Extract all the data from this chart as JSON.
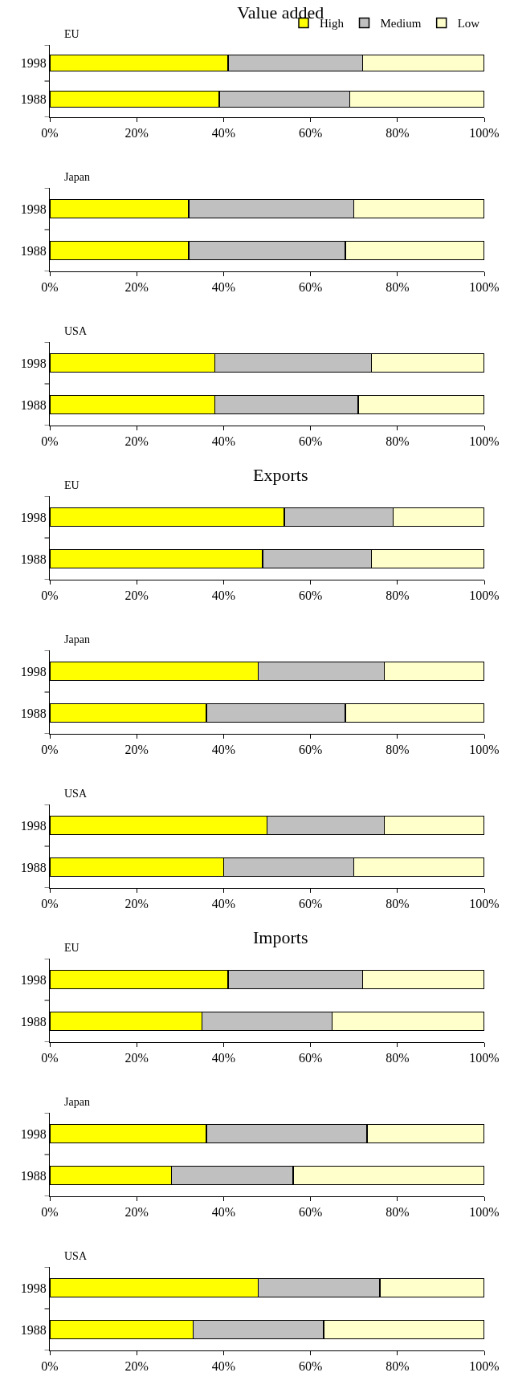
{
  "chart_data": [
    {
      "type": "bar",
      "orientation": "horizontal",
      "stacked": true,
      "title": "Value added",
      "subtitle": "EU",
      "legend": "top right",
      "categories": [
        "1998",
        "1988"
      ],
      "xlim": [
        0,
        100
      ],
      "xticks": [
        {
          "value": 0,
          "label": "0%"
        },
        {
          "value": 20,
          "label": "20%"
        },
        {
          "value": 40,
          "label": "40%"
        },
        {
          "value": 60,
          "label": "60%"
        },
        {
          "value": 80,
          "label": "80%"
        },
        {
          "value": 100,
          "label": "100%"
        }
      ],
      "series": [
        {
          "name": "High",
          "color": "#ffff00",
          "values": [
            41,
            39
          ]
        },
        {
          "name": "Medium",
          "color": "#c0c0c0",
          "values": [
            31,
            30
          ]
        },
        {
          "name": "Low",
          "color": "#ffffcc",
          "values": [
            28,
            31
          ]
        }
      ]
    },
    {
      "type": "bar",
      "orientation": "horizontal",
      "stacked": true,
      "subtitle": "Japan",
      "categories": [
        "1998",
        "1988"
      ],
      "xlim": [
        0,
        100
      ],
      "xticks": [
        {
          "value": 0,
          "label": "0%"
        },
        {
          "value": 20,
          "label": "20%"
        },
        {
          "value": 40,
          "label": "40%"
        },
        {
          "value": 60,
          "label": "60%"
        },
        {
          "value": 80,
          "label": "80%"
        },
        {
          "value": 100,
          "label": "100%"
        }
      ],
      "series": [
        {
          "color": "#ffff00",
          "values": [
            32,
            32
          ]
        },
        {
          "color": "#c0c0c0",
          "values": [
            38,
            36
          ]
        },
        {
          "color": "#ffffcc",
          "values": [
            30,
            32
          ]
        }
      ]
    },
    {
      "type": "bar",
      "orientation": "horizontal",
      "stacked": true,
      "subtitle": "USA",
      "categories": [
        "1998",
        "1988"
      ],
      "xlim": [
        0,
        100
      ],
      "xticks": [
        {
          "value": 0,
          "label": "0%"
        },
        {
          "value": 20,
          "label": "20%"
        },
        {
          "value": 40,
          "label": "40%"
        },
        {
          "value": 60,
          "label": "60%"
        },
        {
          "value": 80,
          "label": "80%"
        },
        {
          "value": 100,
          "label": "100%"
        }
      ],
      "series": [
        {
          "color": "#ffff00",
          "values": [
            38,
            38
          ]
        },
        {
          "color": "#c0c0c0",
          "values": [
            36,
            33
          ]
        },
        {
          "color": "#ffffcc",
          "values": [
            26,
            29
          ]
        }
      ]
    },
    {
      "type": "bar",
      "orientation": "horizontal",
      "stacked": true,
      "title": "Exports",
      "subtitle": "EU",
      "categories": [
        "1998",
        "1988"
      ],
      "xlim": [
        0,
        100
      ],
      "xticks": [
        {
          "value": 0,
          "label": "0%"
        },
        {
          "value": 20,
          "label": "20%"
        },
        {
          "value": 40,
          "label": "40%"
        },
        {
          "value": 60,
          "label": "60%"
        },
        {
          "value": 80,
          "label": "80%"
        },
        {
          "value": 100,
          "label": "100%"
        }
      ],
      "series": [
        {
          "color": "#ffff00",
          "values": [
            54,
            49
          ]
        },
        {
          "color": "#c0c0c0",
          "values": [
            25,
            25
          ]
        },
        {
          "color": "#ffffcc",
          "values": [
            21,
            26
          ]
        }
      ]
    },
    {
      "type": "bar",
      "orientation": "horizontal",
      "stacked": true,
      "subtitle": "Japan",
      "categories": [
        "1998",
        "1988"
      ],
      "xlim": [
        0,
        100
      ],
      "xticks": [
        {
          "value": 0,
          "label": "0%"
        },
        {
          "value": 20,
          "label": "20%"
        },
        {
          "value": 40,
          "label": "40%"
        },
        {
          "value": 60,
          "label": "60%"
        },
        {
          "value": 80,
          "label": "80%"
        },
        {
          "value": 100,
          "label": "100%"
        }
      ],
      "series": [
        {
          "color": "#ffff00",
          "values": [
            48,
            36
          ]
        },
        {
          "color": "#c0c0c0",
          "values": [
            29,
            32
          ]
        },
        {
          "color": "#ffffcc",
          "values": [
            23,
            32
          ]
        }
      ]
    },
    {
      "type": "bar",
      "orientation": "horizontal",
      "stacked": true,
      "subtitle": "USA",
      "categories": [
        "1998",
        "1988"
      ],
      "xlim": [
        0,
        100
      ],
      "xticks": [
        {
          "value": 0,
          "label": "0%"
        },
        {
          "value": 20,
          "label": "20%"
        },
        {
          "value": 40,
          "label": "40%"
        },
        {
          "value": 60,
          "label": "60%"
        },
        {
          "value": 80,
          "label": "80%"
        },
        {
          "value": 100,
          "label": "100%"
        }
      ],
      "series": [
        {
          "color": "#ffff00",
          "values": [
            50,
            40
          ]
        },
        {
          "color": "#c0c0c0",
          "values": [
            27,
            30
          ]
        },
        {
          "color": "#ffffcc",
          "values": [
            23,
            30
          ]
        }
      ]
    },
    {
      "type": "bar",
      "orientation": "horizontal",
      "stacked": true,
      "title": "Imports",
      "subtitle": "EU",
      "categories": [
        "1998",
        "1988"
      ],
      "xlim": [
        0,
        100
      ],
      "xticks": [
        {
          "value": 0,
          "label": "0%"
        },
        {
          "value": 20,
          "label": "20%"
        },
        {
          "value": 40,
          "label": "40%"
        },
        {
          "value": 60,
          "label": "60%"
        },
        {
          "value": 80,
          "label": "80%"
        },
        {
          "value": 100,
          "label": "100%"
        }
      ],
      "series": [
        {
          "color": "#ffff00",
          "values": [
            41,
            35
          ]
        },
        {
          "color": "#c0c0c0",
          "values": [
            31,
            30
          ]
        },
        {
          "color": "#ffffcc",
          "values": [
            28,
            35
          ]
        }
      ]
    },
    {
      "type": "bar",
      "orientation": "horizontal",
      "stacked": true,
      "subtitle": "Japan",
      "categories": [
        "1998",
        "1988"
      ],
      "xlim": [
        0,
        100
      ],
      "xticks": [
        {
          "value": 0,
          "label": "0%"
        },
        {
          "value": 20,
          "label": "20%"
        },
        {
          "value": 40,
          "label": "40%"
        },
        {
          "value": 60,
          "label": "60%"
        },
        {
          "value": 80,
          "label": "80%"
        },
        {
          "value": 100,
          "label": "100%"
        }
      ],
      "series": [
        {
          "color": "#ffff00",
          "values": [
            36,
            28
          ]
        },
        {
          "color": "#c0c0c0",
          "values": [
            37,
            28
          ]
        },
        {
          "color": "#ffffcc",
          "values": [
            27,
            44
          ]
        }
      ]
    },
    {
      "type": "bar",
      "orientation": "horizontal",
      "stacked": true,
      "subtitle": "USA",
      "categories": [
        "1998",
        "1988"
      ],
      "xlim": [
        0,
        100
      ],
      "xticks": [
        {
          "value": 0,
          "label": "0%"
        },
        {
          "value": 20,
          "label": "20%"
        },
        {
          "value": 40,
          "label": "40%"
        },
        {
          "value": 60,
          "label": "60%"
        },
        {
          "value": 80,
          "label": "80%"
        },
        {
          "value": 100,
          "label": "100%"
        }
      ],
      "series": [
        {
          "color": "#ffff00",
          "values": [
            48,
            33
          ]
        },
        {
          "color": "#c0c0c0",
          "values": [
            28,
            30
          ]
        },
        {
          "color": "#ffffcc",
          "values": [
            24,
            37
          ]
        }
      ]
    }
  ]
}
